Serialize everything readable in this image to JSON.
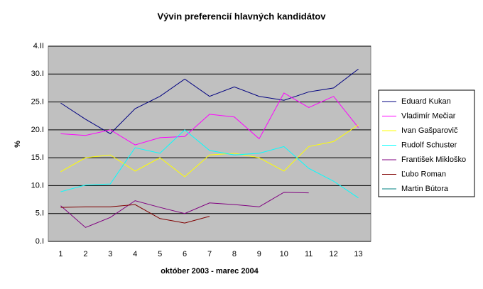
{
  "chart_data": {
    "type": "line",
    "title": "Vývin preferencií hlavných kandidátov",
    "xlabel": "október 2003 - marec 2004",
    "ylabel": "%",
    "categories": [
      "1",
      "2",
      "3",
      "4",
      "5",
      "6",
      "7",
      "8",
      "9",
      "10",
      "11",
      "12",
      "13"
    ],
    "ylim": [
      0,
      35
    ],
    "yticks": [
      {
        "value": 0,
        "label": "0.I"
      },
      {
        "value": 5,
        "label": "5.I"
      },
      {
        "value": 10,
        "label": "10.I"
      },
      {
        "value": 15,
        "label": "15.I"
      },
      {
        "value": 20,
        "label": "20.I"
      },
      {
        "value": 25,
        "label": "25.I"
      },
      {
        "value": 30,
        "label": "30.I"
      },
      {
        "value": 35,
        "label": "4.II"
      }
    ],
    "grid": true,
    "legend": "right",
    "series": [
      {
        "name": "Eduard Kukan",
        "color": "#000080",
        "values": [
          24.8,
          21.9,
          19.3,
          23.8,
          26.0,
          29.1,
          26.0,
          27.7,
          26.0,
          25.3,
          26.8,
          27.5,
          30.9
        ]
      },
      {
        "name": "Vladimír Mečiar",
        "color": "#ff00ff",
        "values": [
          19.3,
          19.0,
          20.0,
          17.3,
          18.6,
          18.8,
          22.8,
          22.3,
          18.4,
          26.6,
          24.0,
          26.0,
          20.4
        ]
      },
      {
        "name": "Ivan Gašparovič",
        "color": "#ffff00",
        "values": [
          12.5,
          15.0,
          15.5,
          12.6,
          15.0,
          11.6,
          15.5,
          15.8,
          15.0,
          12.6,
          17.0,
          17.9,
          20.9
        ]
      },
      {
        "name": "Rudolf Schuster",
        "color": "#00ffff",
        "values": [
          8.9,
          10.1,
          10.3,
          16.8,
          15.8,
          20.0,
          16.3,
          15.5,
          15.8,
          17.0,
          13.1,
          10.8,
          7.8
        ]
      },
      {
        "name": "František Mikloško",
        "color": "#800080",
        "values": [
          6.4,
          2.5,
          4.3,
          7.3,
          6.1,
          5.0,
          6.9,
          6.6,
          6.2,
          8.8,
          8.7,
          null,
          null
        ]
      },
      {
        "name": "Ľubo Roman",
        "color": "#800000",
        "values": [
          6.1,
          6.2,
          6.2,
          6.6,
          4.1,
          3.3,
          4.5,
          null,
          null,
          null,
          null,
          null,
          null
        ]
      },
      {
        "name": "Martin Bútora",
        "color": "#008080",
        "values": [
          null,
          null,
          null,
          null,
          null,
          null,
          null,
          null,
          null,
          null,
          null,
          null,
          null
        ]
      }
    ]
  }
}
